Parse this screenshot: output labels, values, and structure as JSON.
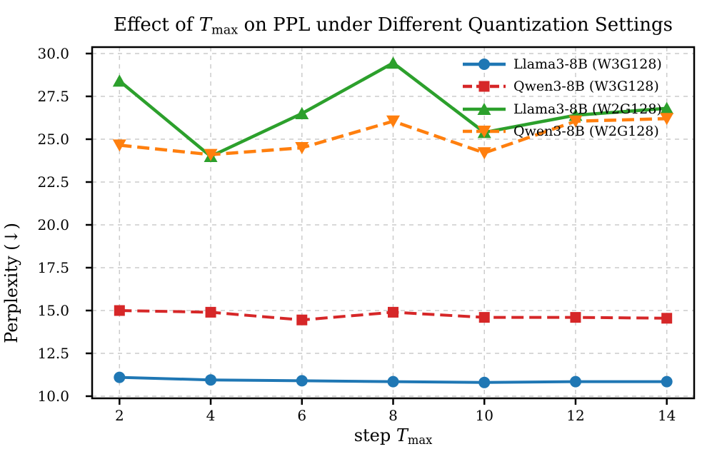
{
  "chart_data": {
    "type": "line",
    "title": "Effect of T_max on PPL under Different Quantization Settings",
    "title_parts": {
      "prefix": "Effect of ",
      "var": "T",
      "var_sub": "max",
      "suffix": " on PPL under Different Quantization Settings"
    },
    "xlabel": "step T_max",
    "xlabel_parts": {
      "prefix": "step ",
      "var": "T",
      "var_sub": "max"
    },
    "ylabel": "Perplexity (↓)",
    "x": [
      2,
      4,
      6,
      8,
      10,
      12,
      14
    ],
    "xticks": [
      "2",
      "4",
      "6",
      "8",
      "10",
      "12",
      "14"
    ],
    "yticks": [
      10.0,
      12.5,
      15.0,
      17.5,
      20.0,
      22.5,
      25.0,
      27.5,
      30.0
    ],
    "xlim": [
      1.4,
      14.6
    ],
    "ylim": [
      9.875,
      30.375
    ],
    "grid": true,
    "grid_style": "dashed",
    "legend_position": "upper right",
    "series": [
      {
        "name": "Llama3-8B (W3G128)",
        "color": "#1f77b4",
        "linestyle": "solid",
        "marker": "circle",
        "values": [
          11.1,
          10.95,
          10.9,
          10.85,
          10.8,
          10.85,
          10.85
        ]
      },
      {
        "name": "Qwen3-8B (W3G128)",
        "color": "#d62728",
        "linestyle": "dashed",
        "marker": "square",
        "values": [
          15.0,
          14.9,
          14.45,
          14.9,
          14.6,
          14.6,
          14.55
        ]
      },
      {
        "name": "Llama3-8B (W2G128)",
        "color": "#2ca02c",
        "linestyle": "solid",
        "marker": "triangle-up",
        "values": [
          28.4,
          24.0,
          26.5,
          29.45,
          25.4,
          26.4,
          26.8
        ]
      },
      {
        "name": "Qwen3-8B (W2G128)",
        "color": "#ff7f0e",
        "linestyle": "dashed",
        "marker": "triangle-down",
        "values": [
          24.65,
          24.1,
          24.5,
          26.05,
          24.2,
          26.05,
          26.2
        ]
      }
    ]
  },
  "colors": {
    "background": "#ffffff",
    "spine": "#000000",
    "grid": "#cccccc",
    "text": "#000000"
  }
}
